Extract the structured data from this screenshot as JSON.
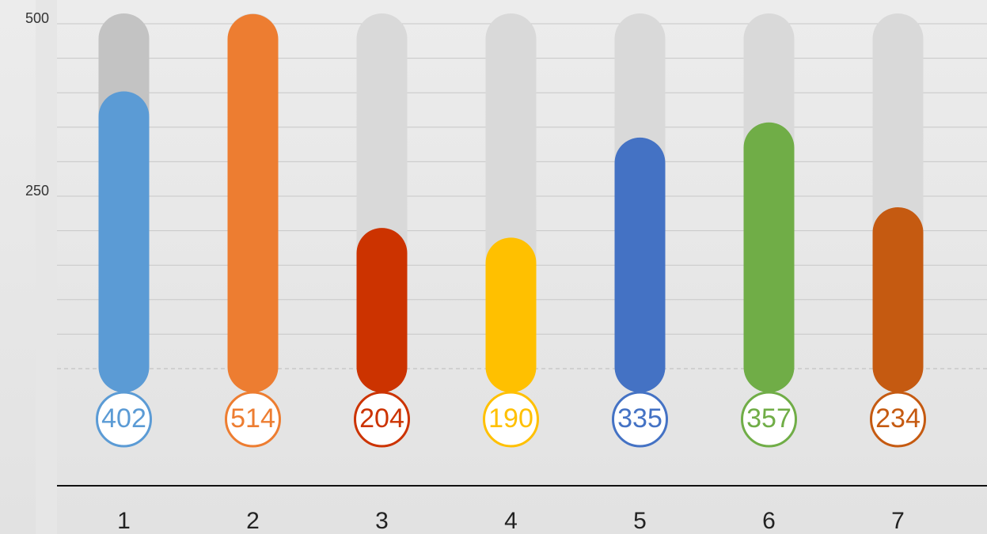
{
  "chart_data": {
    "type": "bar",
    "categories": [
      "1",
      "2",
      "3",
      "4",
      "5",
      "6",
      "7"
    ],
    "values": [
      402,
      514,
      204,
      190,
      335,
      357,
      234
    ],
    "colors": [
      "#5b9bd5",
      "#ed7d31",
      "#cc3300",
      "#ffc000",
      "#4472c4",
      "#70ad47",
      "#c55a11"
    ],
    "ylim": [
      0,
      500
    ],
    "yticks": [
      250,
      500
    ],
    "minor_yticks": [
      50,
      100,
      150,
      200,
      300,
      350,
      400,
      450
    ],
    "grid": true
  }
}
